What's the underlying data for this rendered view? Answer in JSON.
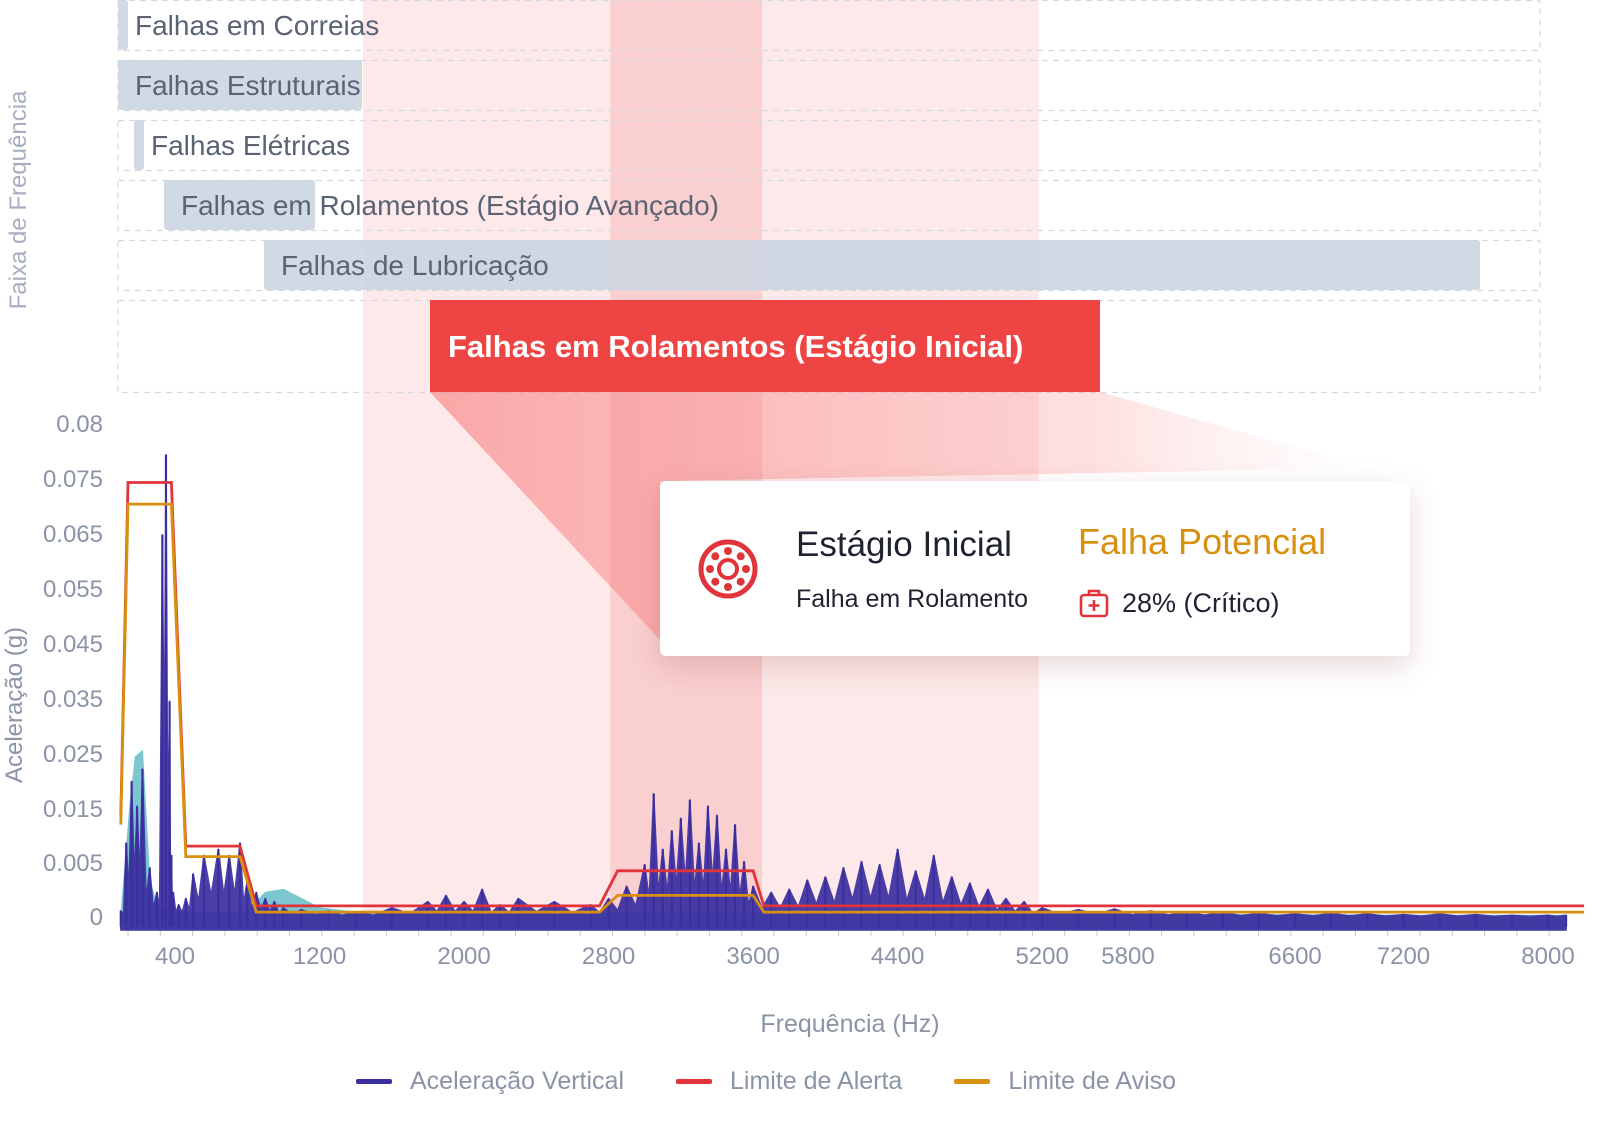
{
  "chart_data": {
    "type": "line",
    "title": "",
    "xlabel": "Frequência (Hz)",
    "ylabel": "Aceleração (g)",
    "xlim": [
      0,
      8200
    ],
    "ylim": [
      0,
      0.08
    ],
    "x_ticks": [
      400,
      1200,
      2000,
      2800,
      3600,
      4400,
      5200,
      5800,
      6600,
      7200,
      8000
    ],
    "y_tick_labels": [
      "0.08",
      "0.075",
      "0.065",
      "0.055",
      "0.045",
      "0.035",
      "0.025",
      "0.015",
      "0.005",
      "0"
    ],
    "grid": false,
    "legend_position": "bottom",
    "bands_axis_label": "Faixa de Frequência",
    "bands": [
      {
        "name": "Falhas em Correias",
        "start": 0,
        "end": 50,
        "highlight": false
      },
      {
        "name": "Falhas Estruturais",
        "start": 0,
        "end": 1400,
        "highlight": false
      },
      {
        "name": "Falhas Elétricas",
        "start": 100,
        "end": 160,
        "highlight": false
      },
      {
        "name": "Falhas em Rolamentos (Estágio Avançado)",
        "start": 270,
        "end": 1140,
        "highlight": false
      },
      {
        "name": "Falhas de Lubricação",
        "start": 850,
        "end": 8000,
        "highlight": false
      },
      {
        "name": "Falhas em Rolamentos (Estágio Inicial)",
        "start": 1840,
        "end": 5780,
        "highlight": true
      }
    ],
    "shaded_regions": [
      {
        "start": 1440,
        "end": 5180
      },
      {
        "start": 2810,
        "end": 3650
      }
    ],
    "series": [
      {
        "name": "Aceleração Vertical",
        "color": "#3b2fa0",
        "x": [
          100,
          130,
          160,
          190,
          220,
          260,
          300,
          330,
          350,
          370,
          380,
          390,
          420,
          460,
          500,
          560,
          640,
          700,
          760,
          800,
          850,
          900,
          950,
          1000,
          1100,
          1250,
          1400,
          1600,
          1800,
          1900,
          2000,
          2100,
          2200,
          2300,
          2500,
          2700,
          2800,
          2900,
          3000,
          3050,
          3100,
          3150,
          3200,
          3250,
          3300,
          3350,
          3400,
          3450,
          3500,
          3550,
          3600,
          3700,
          3800,
          3900,
          4000,
          4100,
          4200,
          4300,
          4400,
          4500,
          4600,
          4700,
          4800,
          4900,
          5000,
          5100,
          5200,
          5400,
          5600,
          5800,
          6000,
          6200,
          6400,
          6600,
          6800,
          7000,
          7200,
          7400,
          7600,
          7800,
          8000,
          8100
        ],
        "y": [
          0.001,
          0.012,
          0.022,
          0.018,
          0.024,
          0.008,
          0.004,
          0.062,
          0.075,
          0.035,
          0.01,
          0.004,
          0.002,
          0.003,
          0.007,
          0.01,
          0.011,
          0.01,
          0.012,
          0.006,
          0.004,
          0.003,
          0.0025,
          0.0015,
          0.0012,
          0.001,
          0.0008,
          0.0015,
          0.0025,
          0.0035,
          0.0025,
          0.0045,
          0.002,
          0.003,
          0.0025,
          0.002,
          0.003,
          0.005,
          0.0085,
          0.02,
          0.011,
          0.014,
          0.016,
          0.019,
          0.012,
          0.018,
          0.0165,
          0.011,
          0.015,
          0.009,
          0.005,
          0.004,
          0.0045,
          0.006,
          0.0065,
          0.008,
          0.009,
          0.0085,
          0.011,
          0.0075,
          0.01,
          0.0065,
          0.0055,
          0.0045,
          0.003,
          0.0025,
          0.0015,
          0.0012,
          0.0013,
          0.001,
          0.0009,
          0.0008,
          0.0006,
          0.0005,
          0.0006,
          0.0005,
          0.0004,
          0.0005,
          0.0004,
          0.0003,
          0.0003,
          0.0003
        ]
      },
      {
        "name": "Limite de Alerta",
        "color": "#e0343a",
        "x": [
          100,
          140,
          290,
          380,
          460,
          700,
          760,
          850,
          2750,
          2850,
          3600,
          3660,
          8200
        ],
        "y": [
          0.0165,
          0.0705,
          0.0705,
          0.0705,
          0.0115,
          0.0115,
          0.0115,
          0.0018,
          0.0018,
          0.0075,
          0.0075,
          0.0018,
          0.0018
        ]
      },
      {
        "name": "Limite de Aviso",
        "color": "#d9900f",
        "x": [
          100,
          140,
          290,
          380,
          460,
          700,
          760,
          850,
          2750,
          2850,
          3600,
          3660,
          8200
        ],
        "y": [
          0.015,
          0.067,
          0.067,
          0.067,
          0.0098,
          0.0098,
          0.0098,
          0.0008,
          0.0008,
          0.0035,
          0.0035,
          0.0008,
          0.0008
        ]
      },
      {
        "name": "",
        "color": "#4fb3bf",
        "x": [
          100,
          150,
          180,
          220,
          260,
          300,
          400,
          600,
          800,
          900,
          1000,
          1100,
          1200,
          1400,
          1800,
          2400,
          3200,
          4000,
          4800,
          5600,
          6400,
          7200,
          8100
        ],
        "y": [
          0.0,
          0.018,
          0.026,
          0.027,
          0.006,
          0.002,
          0.001,
          0.0008,
          0.0009,
          0.004,
          0.0045,
          0.003,
          0.0015,
          0.0008,
          0.0007,
          0.0006,
          0.0006,
          0.0005,
          0.0005,
          0.0004,
          0.0004,
          0.0003,
          0.0003
        ]
      }
    ]
  },
  "popup": {
    "icon": "bearing-icon",
    "title": "Estágio Inicial",
    "subtitle": "Falha em Rolamento",
    "status": "Falha Potencial",
    "status_color": "#d9900f",
    "percent_icon": "medical-case-icon",
    "percent": "28% (Crítico)"
  },
  "colors": {
    "band_bar": "#cbd5e1",
    "band_highlight": "#ef4444",
    "shade_light": "#fde3e3",
    "shade_dark": "#f6b9b9",
    "axis_text": "#8a94a6"
  }
}
